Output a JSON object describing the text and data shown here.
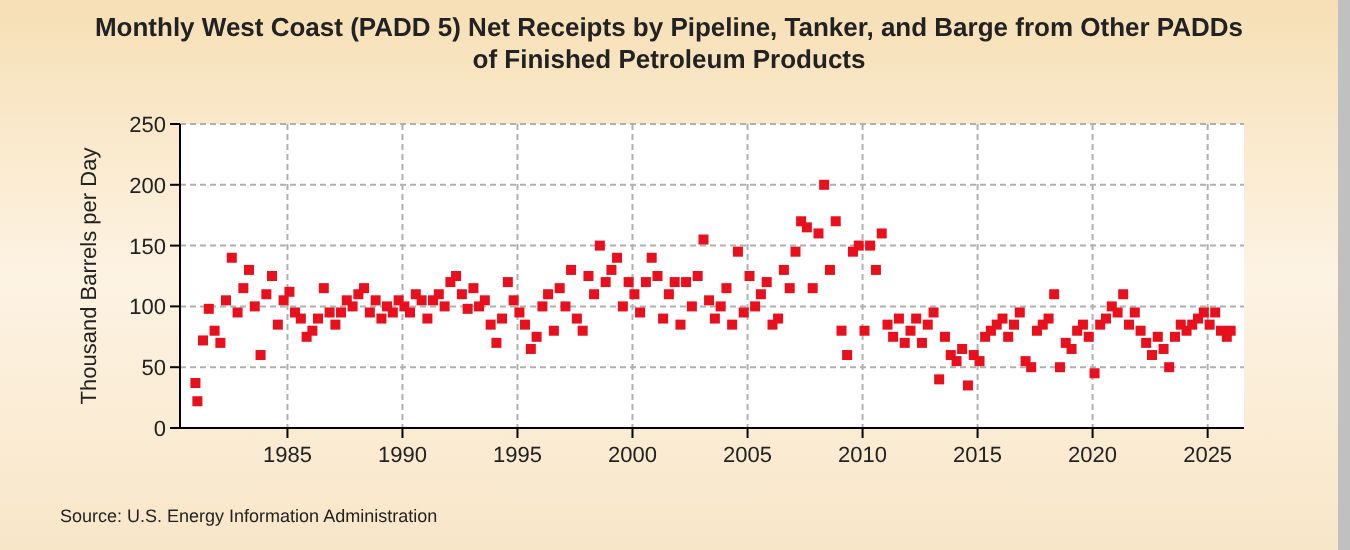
{
  "chart_data": {
    "type": "scatter",
    "title": "Monthly West Coast (PADD 5) Net Receipts by Pipeline, Tanker, and Barge from Other PADDs of Finished Petroleum Products",
    "ylabel": "Thousand Barrels per Day",
    "annotations": [
      "Source: U.S. Energy Information Administration"
    ],
    "xlim": [
      "1980-05",
      "2026-08"
    ],
    "xticks": [
      {
        "value": "1985-01",
        "label": "1985"
      },
      {
        "value": "1990-01",
        "label": "1990"
      },
      {
        "value": "1995-01",
        "label": "1995"
      },
      {
        "value": "2000-01",
        "label": "2000"
      },
      {
        "value": "2005-01",
        "label": "2005"
      },
      {
        "value": "2010-01",
        "label": "2010"
      },
      {
        "value": "2015-01",
        "label": "2015"
      },
      {
        "value": "2020-01",
        "label": "2020"
      },
      {
        "value": "2025-01",
        "label": "2025"
      }
    ],
    "ylim": [
      0,
      250
    ],
    "yticks": [
      0,
      50,
      100,
      150,
      200,
      250
    ],
    "grid": true,
    "marker": "square",
    "series": [
      {
        "color": "#e8101c",
        "x": [
          "1981-01",
          "1981-02",
          "1981-05",
          "1981-08",
          "1981-11",
          "1982-02",
          "1982-05",
          "1982-08",
          "1982-11",
          "1983-02",
          "1983-05",
          "1983-08",
          "1983-11",
          "1984-02",
          "1984-05",
          "1984-08",
          "1984-11",
          "1985-02",
          "1985-05",
          "1985-08",
          "1985-11",
          "1986-02",
          "1986-05",
          "1986-08",
          "1986-11",
          "1987-02",
          "1987-05",
          "1987-08",
          "1987-11",
          "1988-02",
          "1988-05",
          "1988-08",
          "1988-11",
          "1989-02",
          "1989-05",
          "1989-08",
          "1989-11",
          "1990-02",
          "1990-05",
          "1990-08",
          "1990-11",
          "1991-02",
          "1991-05",
          "1991-08",
          "1991-11",
          "1992-02",
          "1992-05",
          "1992-08",
          "1992-11",
          "1993-02",
          "1993-05",
          "1993-08",
          "1993-11",
          "1994-02",
          "1994-05",
          "1994-08",
          "1994-11",
          "1995-02",
          "1995-05",
          "1995-08",
          "1995-11",
          "1996-02",
          "1996-05",
          "1996-08",
          "1996-11",
          "1997-02",
          "1997-05",
          "1997-08",
          "1997-11",
          "1998-02",
          "1998-05",
          "1998-08",
          "1998-11",
          "1999-02",
          "1999-05",
          "1999-08",
          "1999-11",
          "2000-02",
          "2000-05",
          "2000-08",
          "2000-11",
          "2001-02",
          "2001-05",
          "2001-08",
          "2001-11",
          "2002-02",
          "2002-05",
          "2002-08",
          "2002-11",
          "2003-02",
          "2003-05",
          "2003-08",
          "2003-11",
          "2004-02",
          "2004-05",
          "2004-08",
          "2004-11",
          "2005-02",
          "2005-05",
          "2005-08",
          "2005-11",
          "2006-02",
          "2006-05",
          "2006-08",
          "2006-11",
          "2007-02",
          "2007-05",
          "2007-08",
          "2007-11",
          "2008-02",
          "2008-05",
          "2008-08",
          "2008-11",
          "2009-02",
          "2009-05",
          "2009-08",
          "2009-11",
          "2010-02",
          "2010-05",
          "2010-08",
          "2010-11",
          "2011-02",
          "2011-05",
          "2011-08",
          "2011-11",
          "2012-02",
          "2012-05",
          "2012-08",
          "2012-11",
          "2013-02",
          "2013-05",
          "2013-08",
          "2013-11",
          "2014-02",
          "2014-05",
          "2014-08",
          "2014-11",
          "2015-02",
          "2015-05",
          "2015-08",
          "2015-11",
          "2016-02",
          "2016-05",
          "2016-08",
          "2016-11",
          "2017-02",
          "2017-05",
          "2017-08",
          "2017-11",
          "2018-02",
          "2018-05",
          "2018-08",
          "2018-11",
          "2019-02",
          "2019-05",
          "2019-08",
          "2019-11",
          "2020-02",
          "2020-05",
          "2020-08",
          "2020-11",
          "2021-02",
          "2021-05",
          "2021-08",
          "2021-11",
          "2022-02",
          "2022-05",
          "2022-08",
          "2022-11",
          "2023-02",
          "2023-05",
          "2023-08",
          "2023-11",
          "2024-02",
          "2024-05",
          "2024-08",
          "2024-11",
          "2025-02",
          "2025-05",
          "2025-08",
          "2025-11",
          "2026-01"
        ],
        "values": [
          37,
          22,
          72,
          98,
          80,
          70,
          105,
          140,
          95,
          115,
          130,
          100,
          60,
          110,
          125,
          85,
          105,
          112,
          95,
          90,
          75,
          80,
          90,
          115,
          95,
          85,
          95,
          105,
          100,
          110,
          115,
          95,
          105,
          90,
          100,
          95,
          105,
          100,
          95,
          110,
          105,
          90,
          105,
          110,
          100,
          120,
          125,
          110,
          98,
          115,
          100,
          105,
          85,
          70,
          90,
          120,
          105,
          95,
          85,
          65,
          75,
          100,
          110,
          80,
          115,
          100,
          130,
          90,
          80,
          125,
          110,
          150,
          120,
          130,
          140,
          100,
          120,
          110,
          95,
          120,
          140,
          125,
          90,
          110,
          120,
          85,
          120,
          100,
          125,
          155,
          105,
          90,
          100,
          115,
          85,
          145,
          95,
          125,
          100,
          110,
          120,
          85,
          90,
          130,
          115,
          145,
          170,
          165,
          115,
          160,
          200,
          130,
          170,
          80,
          60,
          145,
          150,
          80,
          150,
          130,
          160,
          85,
          75,
          90,
          70,
          80,
          90,
          70,
          85,
          95,
          40,
          75,
          60,
          55,
          65,
          35,
          60,
          55,
          75,
          80,
          85,
          90,
          75,
          85,
          95,
          55,
          50,
          80,
          85,
          90,
          110,
          50,
          70,
          65,
          80,
          85,
          75,
          45,
          85,
          90,
          100,
          95,
          110,
          85,
          95,
          80,
          70,
          60,
          75,
          65,
          50,
          75,
          85,
          80,
          85,
          90,
          95,
          85,
          95,
          80,
          75,
          80
        ]
      }
    ]
  }
}
